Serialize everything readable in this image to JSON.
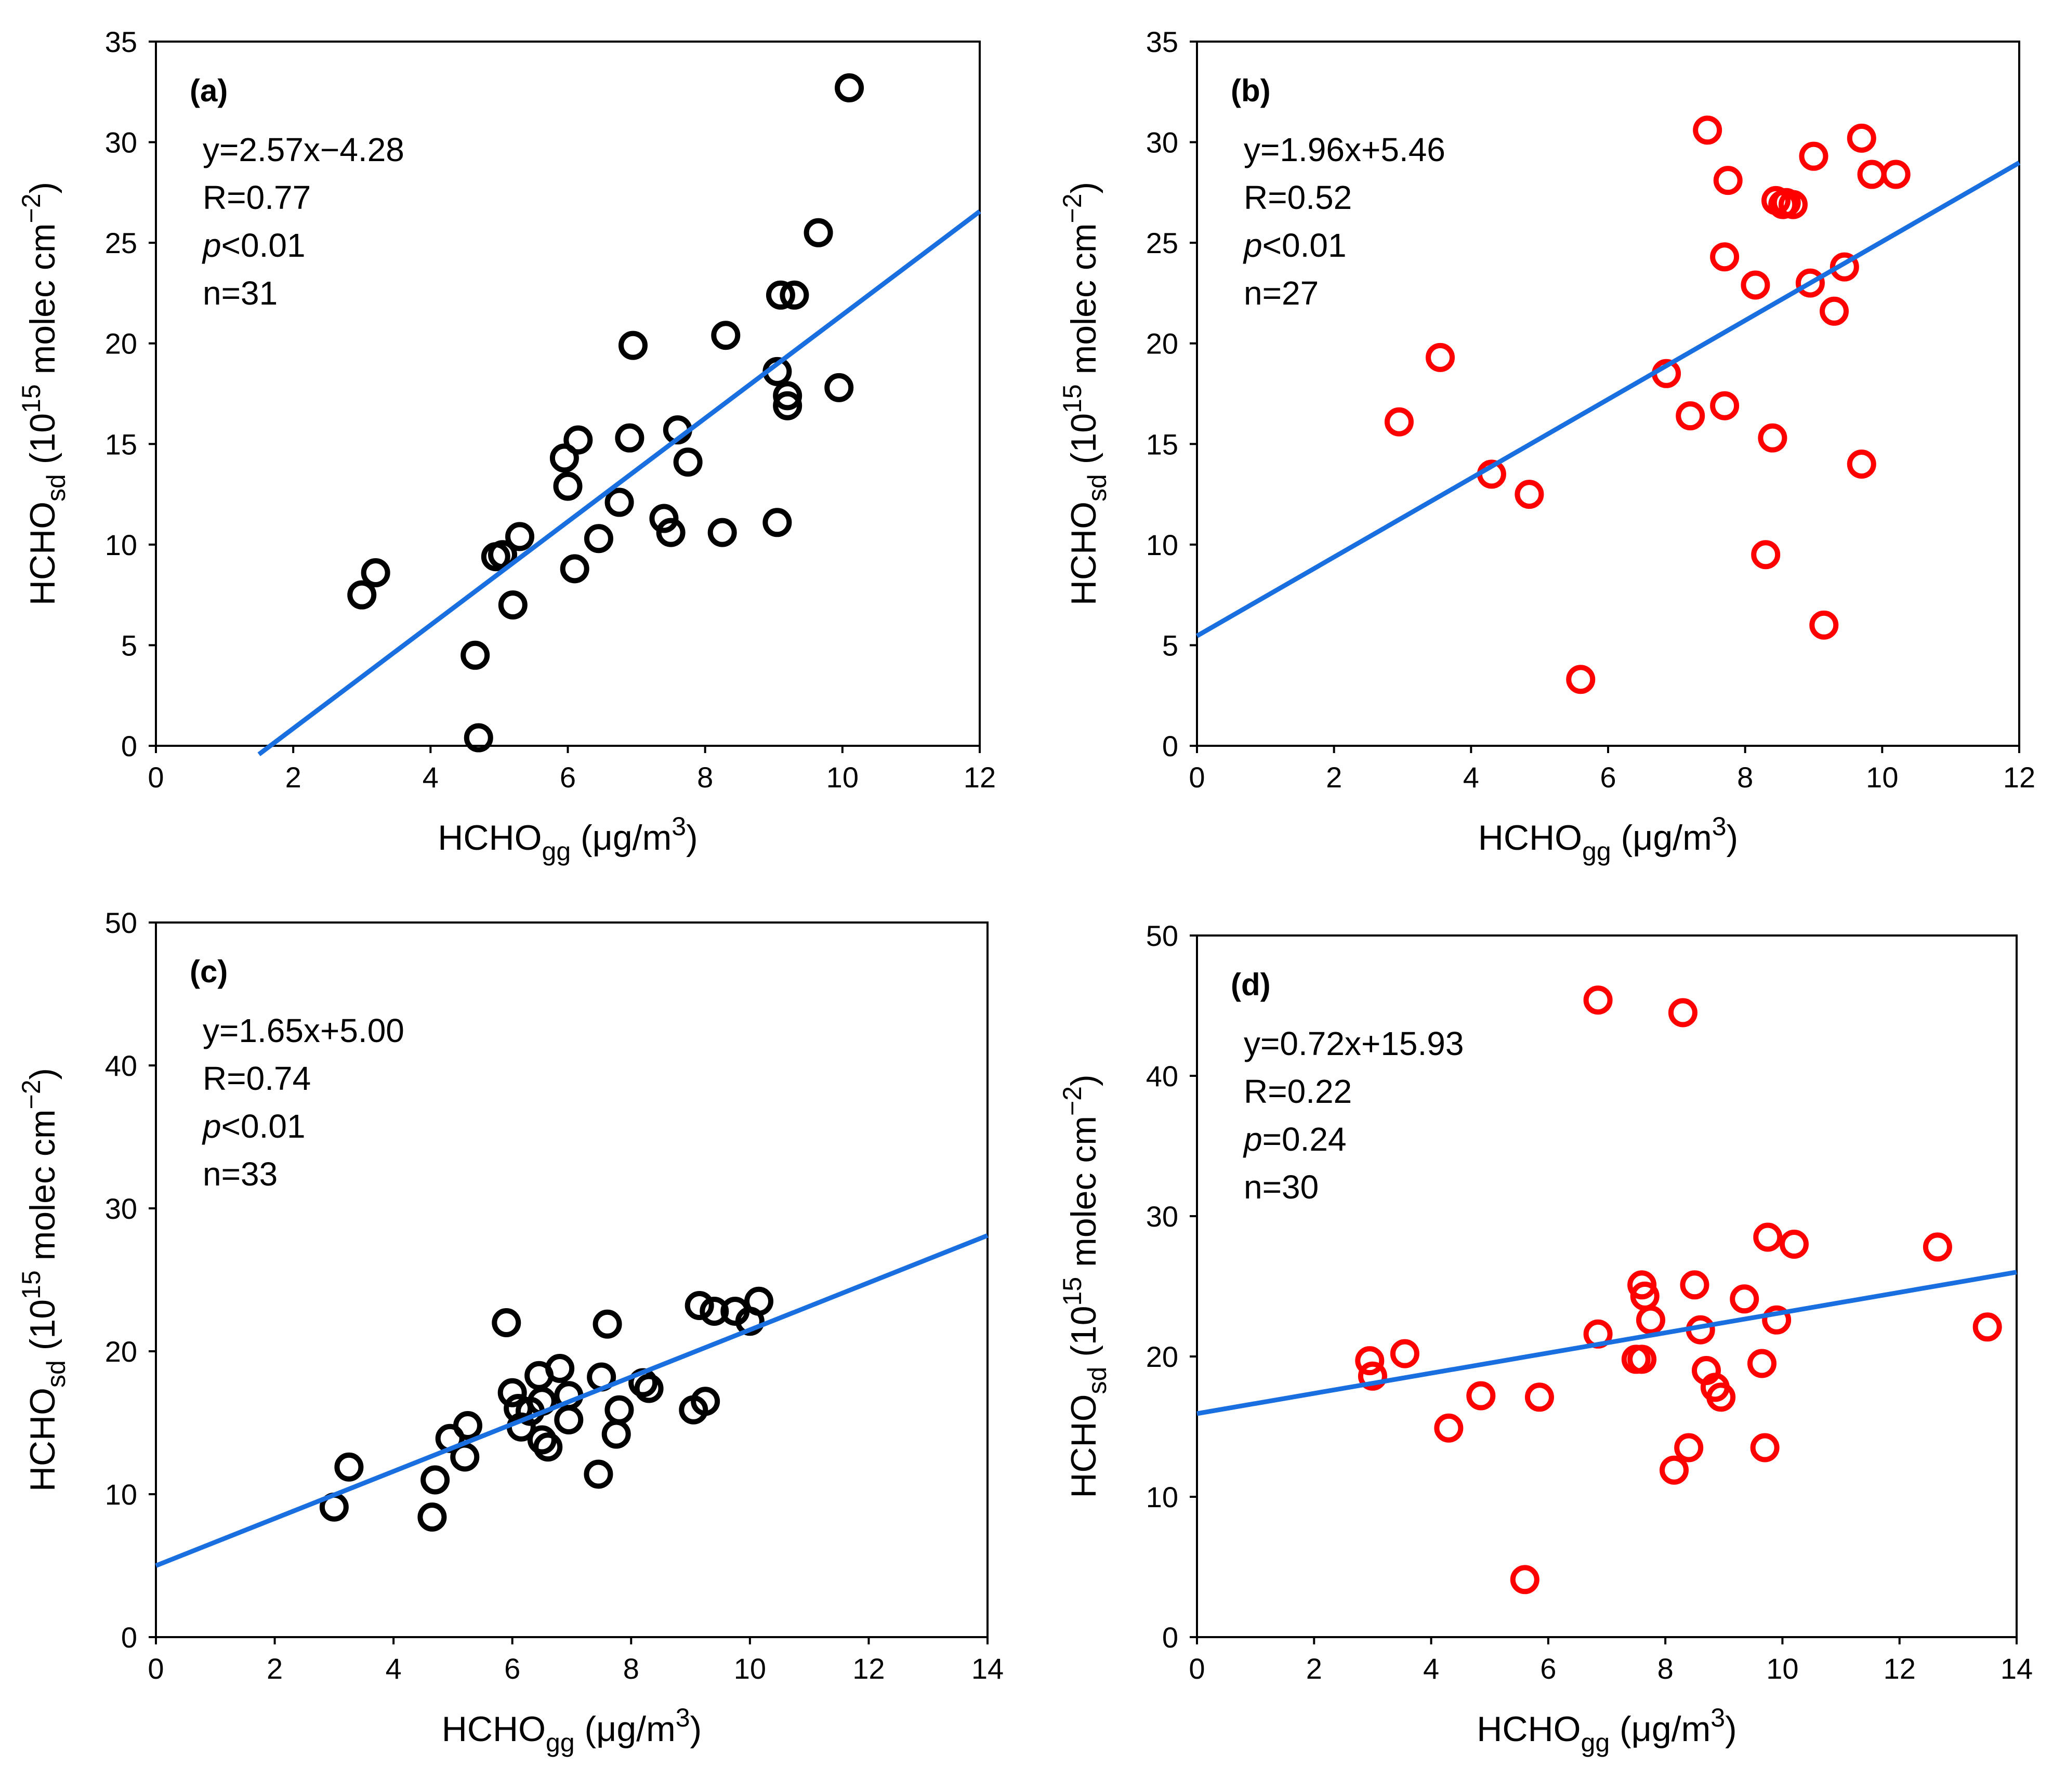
{
  "colors": {
    "black_marker": "#000000",
    "red_marker": "#ff0000",
    "fit_line": "#1a6fe0",
    "axis": "#000000"
  },
  "chart_data": [
    {
      "id": "a",
      "type": "scatter",
      "panel_label": "(a)",
      "marker_color": "#000000",
      "xlim": [
        0,
        12
      ],
      "ylim": [
        0,
        35
      ],
      "xticks": [
        0,
        2,
        4,
        6,
        8,
        10,
        12
      ],
      "yticks": [
        0,
        5,
        10,
        15,
        20,
        25,
        30,
        35
      ],
      "xtick_labels": [
        "0",
        "2",
        "4",
        "6",
        "8",
        "10",
        "12"
      ],
      "ytick_labels": [
        "0",
        "5",
        "10",
        "15",
        "20",
        "25",
        "30",
        "35"
      ],
      "xlabel": {
        "main": "HCHO",
        "sub": "gg",
        "unit_open": " (μg/m",
        "sup": "3",
        "unit_close": ")"
      },
      "ylabel": {
        "main": "HCHO",
        "sub": "sd",
        "unit_open": " (10",
        "sup": "15",
        "unit_mid": " molec cm",
        "sup2": "−2",
        "unit_close": ")"
      },
      "stats": {
        "equation": "y=2.57x−4.28",
        "r": "R=0.77",
        "p_symbol": "p",
        "p_rest": "<0.01",
        "n": "n=31"
      },
      "fit": {
        "slope": 2.57,
        "intercept": -4.28,
        "x_range": [
          1.5,
          12
        ]
      },
      "points": [
        [
          10.1,
          32.7
        ],
        [
          9.65,
          25.5
        ],
        [
          9.1,
          22.4
        ],
        [
          9.3,
          22.4
        ],
        [
          6.95,
          19.9
        ],
        [
          8.3,
          20.4
        ],
        [
          9.05,
          18.6
        ],
        [
          9.2,
          17.4
        ],
        [
          9.2,
          16.9
        ],
        [
          9.95,
          17.8
        ],
        [
          5.95,
          14.3
        ],
        [
          6.15,
          15.2
        ],
        [
          6.9,
          15.3
        ],
        [
          7.6,
          15.7
        ],
        [
          7.75,
          14.1
        ],
        [
          6.0,
          12.9
        ],
        [
          6.75,
          12.1
        ],
        [
          7.4,
          11.3
        ],
        [
          7.5,
          10.6
        ],
        [
          8.25,
          10.6
        ],
        [
          9.05,
          11.1
        ],
        [
          5.3,
          10.4
        ],
        [
          6.45,
          10.3
        ],
        [
          5.05,
          9.5
        ],
        [
          4.95,
          9.4
        ],
        [
          6.1,
          8.8
        ],
        [
          3.2,
          8.6
        ],
        [
          3.0,
          7.5
        ],
        [
          5.2,
          7.0
        ],
        [
          4.65,
          4.5
        ],
        [
          4.7,
          0.4
        ]
      ]
    },
    {
      "id": "b",
      "type": "scatter",
      "panel_label": "(b)",
      "marker_color": "#ff0000",
      "xlim": [
        0,
        12
      ],
      "ylim": [
        0,
        35
      ],
      "xticks": [
        0,
        2,
        4,
        6,
        8,
        10,
        12
      ],
      "yticks": [
        0,
        5,
        10,
        15,
        20,
        25,
        30,
        35
      ],
      "xtick_labels": [
        "0",
        "2",
        "4",
        "6",
        "8",
        "10",
        "12"
      ],
      "ytick_labels": [
        "0",
        "5",
        "10",
        "15",
        "20",
        "25",
        "30",
        "35"
      ],
      "xlabel": {
        "main": "HCHO",
        "sub": "gg",
        "unit_open": " (μg/m",
        "sup": "3",
        "unit_close": ")"
      },
      "ylabel": {
        "main": "HCHO",
        "sub": "sd",
        "unit_open": " (10",
        "sup": "15",
        "unit_mid": " molec cm",
        "sup2": "−2",
        "unit_close": ")"
      },
      "stats": {
        "equation": "y=1.96x+5.46",
        "r": "R=0.52",
        "p_symbol": "p",
        "p_rest": "<0.01",
        "n": "n=27"
      },
      "fit": {
        "slope": 1.96,
        "intercept": 5.46,
        "x_range": [
          0,
          12
        ]
      },
      "points": [
        [
          7.45,
          30.6
        ],
        [
          9.7,
          30.2
        ],
        [
          9.0,
          29.3
        ],
        [
          9.85,
          28.4
        ],
        [
          10.2,
          28.4
        ],
        [
          7.75,
          28.1
        ],
        [
          8.45,
          27.1
        ],
        [
          8.55,
          26.9
        ],
        [
          8.7,
          26.9
        ],
        [
          7.7,
          24.3
        ],
        [
          9.45,
          23.8
        ],
        [
          8.95,
          23.0
        ],
        [
          8.15,
          22.9
        ],
        [
          9.3,
          21.6
        ],
        [
          3.55,
          19.3
        ],
        [
          6.85,
          18.5
        ],
        [
          2.95,
          16.1
        ],
        [
          7.2,
          16.4
        ],
        [
          7.7,
          16.9
        ],
        [
          8.4,
          15.3
        ],
        [
          9.7,
          14.0
        ],
        [
          4.3,
          13.5
        ],
        [
          4.85,
          12.5
        ],
        [
          8.3,
          9.5
        ],
        [
          9.15,
          6.0
        ],
        [
          5.6,
          3.3
        ],
        [
          8.6,
          27.0
        ]
      ]
    },
    {
      "id": "c",
      "type": "scatter",
      "panel_label": "(c)",
      "marker_color": "#000000",
      "xlim": [
        0,
        14
      ],
      "ylim": [
        0,
        50
      ],
      "xticks": [
        0,
        2,
        4,
        6,
        8,
        10,
        12,
        14
      ],
      "yticks": [
        0,
        10,
        20,
        30,
        40,
        50
      ],
      "xtick_labels": [
        "0",
        "2",
        "4",
        "6",
        "8",
        "10",
        "12",
        "14"
      ],
      "ytick_labels": [
        "0",
        "10",
        "20",
        "30",
        "40",
        "50"
      ],
      "xlabel": {
        "main": "HCHO",
        "sub": "gg",
        "unit_open": " (μg/m",
        "sup": "3",
        "unit_close": ")"
      },
      "ylabel": {
        "main": "HCHO",
        "sub": "sd",
        "unit_open": " (10",
        "sup": "15",
        "unit_mid": " molec cm",
        "sup2": "−2",
        "unit_close": ")"
      },
      "stats": {
        "equation": "y=1.65x+5.00",
        "r": "R=0.74",
        "p_symbol": "p",
        "p_rest": "<0.01",
        "n": "n=33"
      },
      "fit": {
        "slope": 1.65,
        "intercept": 5.0,
        "x_range": [
          0,
          14
        ]
      },
      "points": [
        [
          10.15,
          23.5
        ],
        [
          9.15,
          23.2
        ],
        [
          9.4,
          22.8
        ],
        [
          9.75,
          22.8
        ],
        [
          10.0,
          22.1
        ],
        [
          5.9,
          22.0
        ],
        [
          7.6,
          21.9
        ],
        [
          6.8,
          18.8
        ],
        [
          6.45,
          18.3
        ],
        [
          7.5,
          18.2
        ],
        [
          8.2,
          17.8
        ],
        [
          6.0,
          17.1
        ],
        [
          6.95,
          16.9
        ],
        [
          8.3,
          17.4
        ],
        [
          6.5,
          16.5
        ],
        [
          9.25,
          16.5
        ],
        [
          9.05,
          15.9
        ],
        [
          7.8,
          15.9
        ],
        [
          6.95,
          15.2
        ],
        [
          5.25,
          14.8
        ],
        [
          6.15,
          14.7
        ],
        [
          4.95,
          13.9
        ],
        [
          7.75,
          14.2
        ],
        [
          6.5,
          13.8
        ],
        [
          6.6,
          13.3
        ],
        [
          5.2,
          12.6
        ],
        [
          3.25,
          11.9
        ],
        [
          7.45,
          11.4
        ],
        [
          4.7,
          11.0
        ],
        [
          3.0,
          9.1
        ],
        [
          4.65,
          8.4
        ],
        [
          6.3,
          15.8
        ],
        [
          6.1,
          16.0
        ]
      ]
    },
    {
      "id": "d",
      "type": "scatter",
      "panel_label": "(d)",
      "marker_color": "#ff0000",
      "xlim": [
        0,
        14
      ],
      "ylim": [
        0,
        50
      ],
      "xticks": [
        0,
        2,
        4,
        6,
        8,
        10,
        12,
        14
      ],
      "yticks": [
        0,
        10,
        20,
        30,
        40,
        50
      ],
      "xtick_labels": [
        "0",
        "2",
        "4",
        "6",
        "8",
        "10",
        "12",
        "14"
      ],
      "ytick_labels": [
        "0",
        "10",
        "20",
        "30",
        "40",
        "50"
      ],
      "xlabel": {
        "main": "HCHO",
        "sub": "gg",
        "unit_open": " (μg/m",
        "sup": "3",
        "unit_close": ")"
      },
      "ylabel": {
        "main": "HCHO",
        "sub": "sd",
        "unit_open": " (10",
        "sup": "15",
        "unit_mid": " molec cm",
        "sup2": "−2",
        "unit_close": ")"
      },
      "stats": {
        "equation": "y=0.72x+15.93",
        "r": "R=0.22",
        "p_symbol": "p",
        "p_rest": "=0.24",
        "n": "n=30"
      },
      "fit": {
        "slope": 0.72,
        "intercept": 15.93,
        "x_range": [
          0,
          14
        ]
      },
      "points": [
        [
          6.85,
          45.4
        ],
        [
          8.3,
          44.5
        ],
        [
          9.75,
          28.5
        ],
        [
          10.2,
          28.0
        ],
        [
          12.65,
          27.8
        ],
        [
          7.6,
          25.1
        ],
        [
          8.5,
          25.1
        ],
        [
          7.65,
          24.3
        ],
        [
          9.35,
          24.1
        ],
        [
          7.75,
          22.6
        ],
        [
          9.9,
          22.6
        ],
        [
          8.6,
          21.9
        ],
        [
          13.5,
          22.1
        ],
        [
          6.85,
          21.6
        ],
        [
          7.5,
          19.8
        ],
        [
          7.6,
          19.8
        ],
        [
          2.95,
          19.7
        ],
        [
          3.55,
          20.2
        ],
        [
          9.65,
          19.5
        ],
        [
          3.0,
          18.6
        ],
        [
          8.7,
          19.0
        ],
        [
          8.85,
          17.8
        ],
        [
          8.95,
          17.1
        ],
        [
          4.85,
          17.2
        ],
        [
          5.85,
          17.1
        ],
        [
          4.3,
          14.9
        ],
        [
          8.4,
          13.5
        ],
        [
          9.7,
          13.5
        ],
        [
          8.15,
          11.9
        ],
        [
          5.6,
          4.1
        ]
      ]
    }
  ]
}
